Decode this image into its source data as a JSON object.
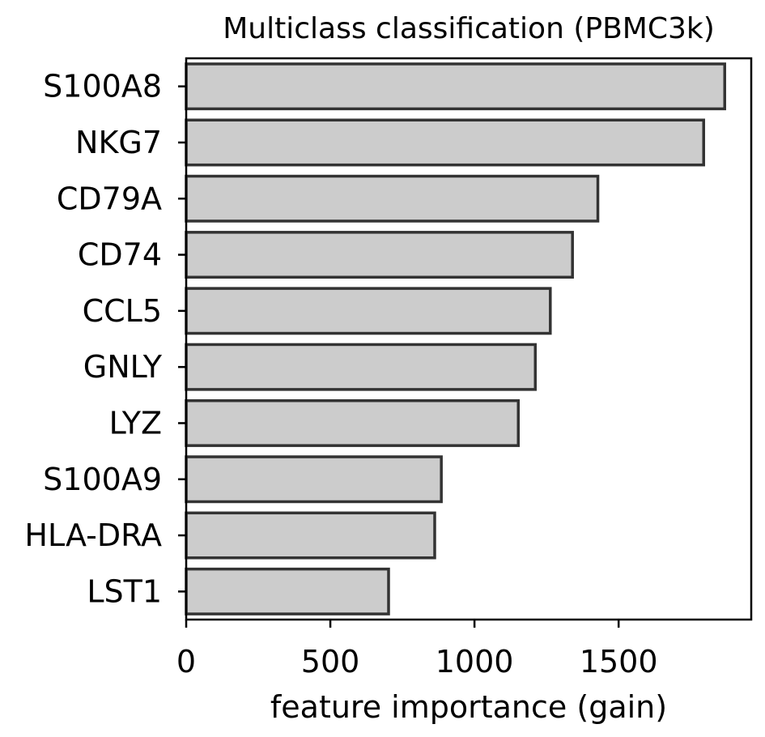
{
  "chart_data": {
    "type": "bar",
    "orientation": "horizontal",
    "title": "Multiclass classification (PBMC3k)",
    "xlabel": "feature importance (gain)",
    "ylabel": "",
    "categories": [
      "S100A8",
      "NKG7",
      "CD79A",
      "CD74",
      "CCL5",
      "GNLY",
      "LYZ",
      "S100A9",
      "HLA-DRA",
      "LST1"
    ],
    "values": [
      1868,
      1795,
      1428,
      1340,
      1263,
      1211,
      1152,
      885,
      862,
      702
    ],
    "xlim": [
      0,
      1960
    ],
    "xticks": [
      0,
      500,
      1000,
      1500
    ],
    "xtick_labels": [
      "0",
      "500",
      "1000",
      "1500"
    ],
    "grid": false,
    "bar_color": "#cccccc",
    "edge_color": "#333333"
  }
}
